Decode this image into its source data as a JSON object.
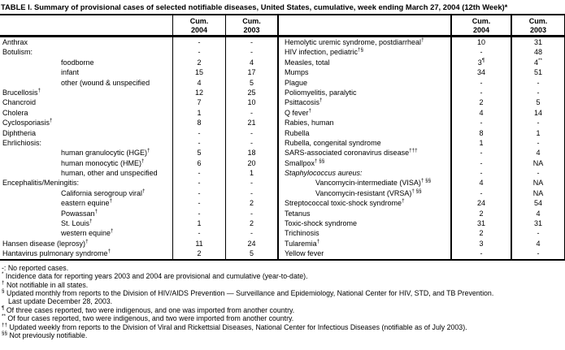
{
  "title": "TABLE I. Summary of provisional cases of selected notifiable diseases, United States, cumulative, week ending March 27, 2004 (12th Week)*",
  "header": {
    "cum_label": "Cum.",
    "year_2004": "2004",
    "year_2003": "2003"
  },
  "table": {
    "left_rows": [
      {
        "name": "Anthrax",
        "v04": "-",
        "v03": "-"
      },
      {
        "name": "Botulism:",
        "v04": "-",
        "v03": "-"
      },
      {
        "name": "foodborne",
        "indent": true,
        "v04": "2",
        "v03": "4"
      },
      {
        "name": "infant",
        "indent": true,
        "v04": "15",
        "v03": "17"
      },
      {
        "name": "other (wound & unspecified",
        "indent": true,
        "v04": "4",
        "v03": "5"
      },
      {
        "name": "Brucellosis",
        "sup": "†",
        "v04": "12",
        "v03": "25"
      },
      {
        "name": "Chancroid",
        "v04": "7",
        "v03": "10"
      },
      {
        "name": "Cholera",
        "v04": "1",
        "v03": "-"
      },
      {
        "name": "Cyclosporiasis",
        "sup": "†",
        "v04": "8",
        "v03": "21"
      },
      {
        "name": "Diphtheria",
        "v04": "-",
        "v03": "-"
      },
      {
        "name": "Ehrlichiosis:",
        "v04": "-",
        "v03": "-"
      },
      {
        "name": "human granulocytic (HGE)",
        "sup": "†",
        "indent": true,
        "v04": "5",
        "v03": "18"
      },
      {
        "name": "human monocytic (HME)",
        "sup": "†",
        "indent": true,
        "v04": "6",
        "v03": "20"
      },
      {
        "name": "human, other and unspecified",
        "indent": true,
        "v04": "-",
        "v03": "1"
      },
      {
        "name": "Encephalitis/Meningitis:",
        "v04": "-",
        "v03": "-"
      },
      {
        "name": "California serogroup viral",
        "sup": "†",
        "indent": true,
        "v04": "-",
        "v03": "-"
      },
      {
        "name": "eastern equine",
        "sup": "†",
        "indent": true,
        "v04": "-",
        "v03": "2"
      },
      {
        "name": "Powassan",
        "sup": "†",
        "indent": true,
        "v04": "-",
        "v03": "-"
      },
      {
        "name": "St. Louis",
        "sup": "†",
        "indent": true,
        "v04": "1",
        "v03": "2"
      },
      {
        "name": "western equine",
        "sup": "†",
        "indent": true,
        "v04": "-",
        "v03": "-"
      },
      {
        "name": "Hansen disease (leprosy)",
        "sup": "†",
        "v04": "11",
        "v03": "24"
      },
      {
        "name": "Hantavirus pulmonary syndrome",
        "sup": "†",
        "v04": "2",
        "v03": "5"
      }
    ],
    "right_rows": [
      {
        "name": "Hemolytic uremic syndrome, postdiarrheal",
        "sup": "†",
        "v04": "10",
        "v03": "31"
      },
      {
        "name": "HIV infection, pediatric",
        "sup": "†§",
        "v04": "-",
        "v03": "48"
      },
      {
        "name": "Measles, total",
        "v04": "3",
        "v04sup": "¶",
        "v03": "4",
        "v03sup": "**"
      },
      {
        "name": "Mumps",
        "v04": "34",
        "v03": "51"
      },
      {
        "name": "Plague",
        "v04": "-",
        "v03": "-"
      },
      {
        "name": "Poliomyelitis, paralytic",
        "v04": "-",
        "v03": "-"
      },
      {
        "name": "Psittacosis",
        "sup": "†",
        "v04": "2",
        "v03": "5"
      },
      {
        "name": "Q fever",
        "sup": "†",
        "v04": "4",
        "v03": "14"
      },
      {
        "name": "Rabies, human",
        "v04": "-",
        "v03": "-"
      },
      {
        "name": "Rubella",
        "v04": "8",
        "v03": "1"
      },
      {
        "name": "Rubella, congenital syndrome",
        "v04": "1",
        "v03": "-"
      },
      {
        "name": "SARS-associated coronavirus disease",
        "sup": "†††",
        "v04": "-",
        "v03": "4"
      },
      {
        "name": "Smallpox",
        "sup": "† §§",
        "v04": "-",
        "v03": "NA"
      },
      {
        "name": "Staphylococcus aureus:",
        "italic": true,
        "v04": "-",
        "v03": "-"
      },
      {
        "name": "Vancomycin-intermediate (VISA)",
        "sup": "† §§",
        "indent": true,
        "v04": "4",
        "v03": "NA"
      },
      {
        "name": "Vancomycin-resistant (VRSA)",
        "sup": "† §§",
        "indent": true,
        "v04": "-",
        "v03": "NA"
      },
      {
        "name": "Streptococcal toxic-shock syndrome",
        "sup": "†",
        "v04": "24",
        "v03": "54"
      },
      {
        "name": "Tetanus",
        "v04": "2",
        "v03": "4"
      },
      {
        "name": "Toxic-shock syndrome",
        "v04": "31",
        "v03": "31"
      },
      {
        "name": "Trichinosis",
        "v04": "2",
        "v03": "-"
      },
      {
        "name": "Tularemia",
        "sup": "†",
        "v04": "3",
        "v03": "4"
      },
      {
        "name": "Yellow fever",
        "v04": "-",
        "v03": "-"
      }
    ]
  },
  "footnotes": [
    {
      "marker": "-:",
      "sup": false,
      "text": "No reported cases."
    },
    {
      "marker": "*",
      "sup": true,
      "text": "Incidence data for reporting years 2003 and 2004 are provisional and cumulative (year-to-date)."
    },
    {
      "marker": "†",
      "sup": true,
      "text": "Not notifiable in all states."
    },
    {
      "marker": "§",
      "sup": true,
      "text": "Updated monthly from reports to the Division of HIV/AIDS Prevention — Surveillance and Epidemiology, National Center for HIV, STD, and TB Prevention."
    },
    {
      "marker": "",
      "sup": false,
      "text": "Last update December 28, 2003."
    },
    {
      "marker": "¶",
      "sup": true,
      "text": "Of three cases reported, two were indigenous, and one was imported from another country."
    },
    {
      "marker": "**",
      "sup": true,
      "text": "Of four cases reported, two were indigenous, and two were imported from another country."
    },
    {
      "marker": "††",
      "sup": true,
      "text": "Updated weekly from reports to the Division of Viral and Rickettsial Diseases, National Center for Infectious Diseases (notifiable as of July 2003)."
    },
    {
      "marker": "§§",
      "sup": true,
      "text": "Not previously notifiable."
    }
  ]
}
